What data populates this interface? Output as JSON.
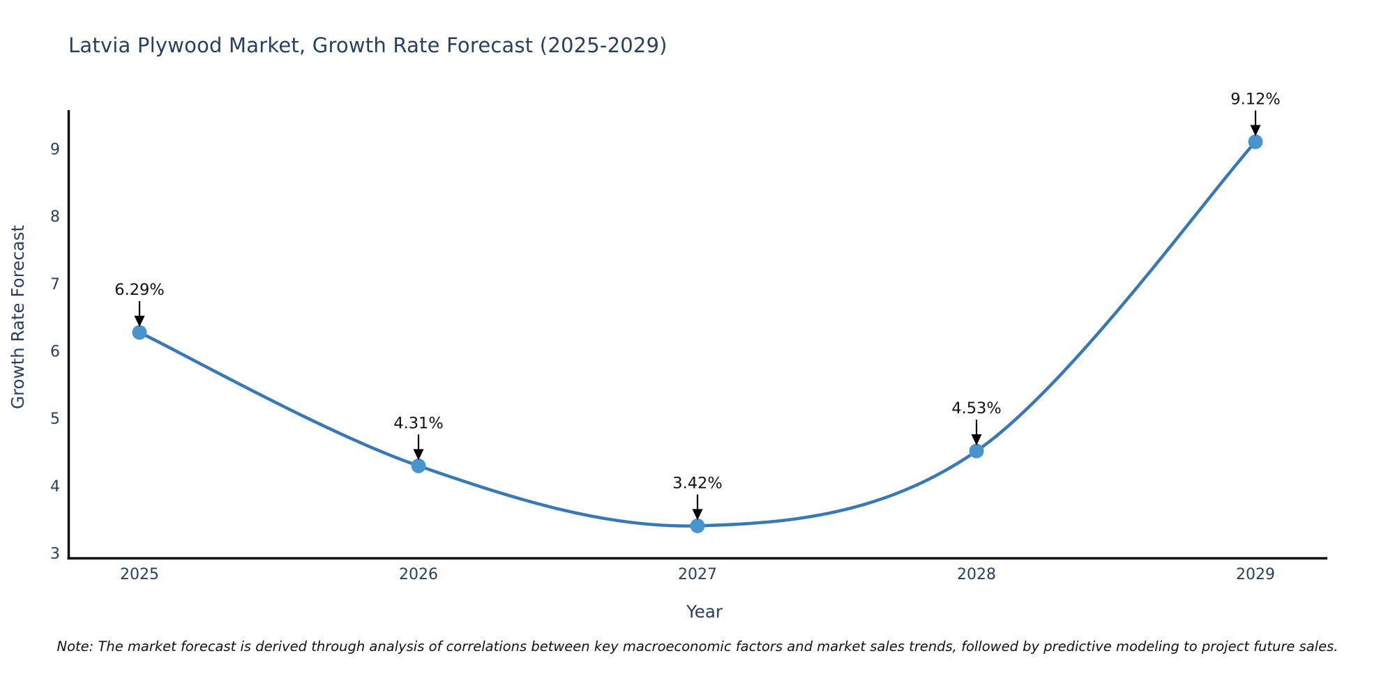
{
  "title": "Latvia Plywood Market, Growth Rate Forecast (2025-2029)",
  "note": "Note: The market forecast is derived through analysis of correlations between key macroeconomic factors and market sales trends, followed by predictive modeling to project future sales.",
  "chart_data": {
    "type": "line",
    "line_shape": "spline",
    "x": [
      "2025",
      "2026",
      "2027",
      "2028",
      "2029"
    ],
    "series": [
      {
        "name": "Growth Rate Forecast",
        "values": [
          6.29,
          4.31,
          3.42,
          4.53,
          9.12
        ]
      }
    ],
    "point_labels": [
      "6.29%",
      "4.31%",
      "3.42%",
      "4.53%",
      "9.12%"
    ],
    "annotation_style": "black-down-arrow-to-marker",
    "title": "Latvia Plywood Market, Growth Rate Forecast (2025-2029)",
    "xlabel": "Year",
    "ylabel": "Growth Rate Forecast",
    "yticks": [
      3,
      4,
      5,
      6,
      7,
      8,
      9
    ],
    "ylim": [
      3,
      9.62
    ],
    "grid": false,
    "legend_position": "none",
    "markers": true
  },
  "colors": {
    "background": "#ffffff",
    "line": "#3878b4",
    "marker": "#4a94ce",
    "axis_spine": "#111111",
    "title_text": "#2a3f5f",
    "axis_label_text": "#2a3f5f",
    "tick_text": "#2a3f5f",
    "annotation_text": "#111111",
    "annotation_arrow": "#000000"
  }
}
